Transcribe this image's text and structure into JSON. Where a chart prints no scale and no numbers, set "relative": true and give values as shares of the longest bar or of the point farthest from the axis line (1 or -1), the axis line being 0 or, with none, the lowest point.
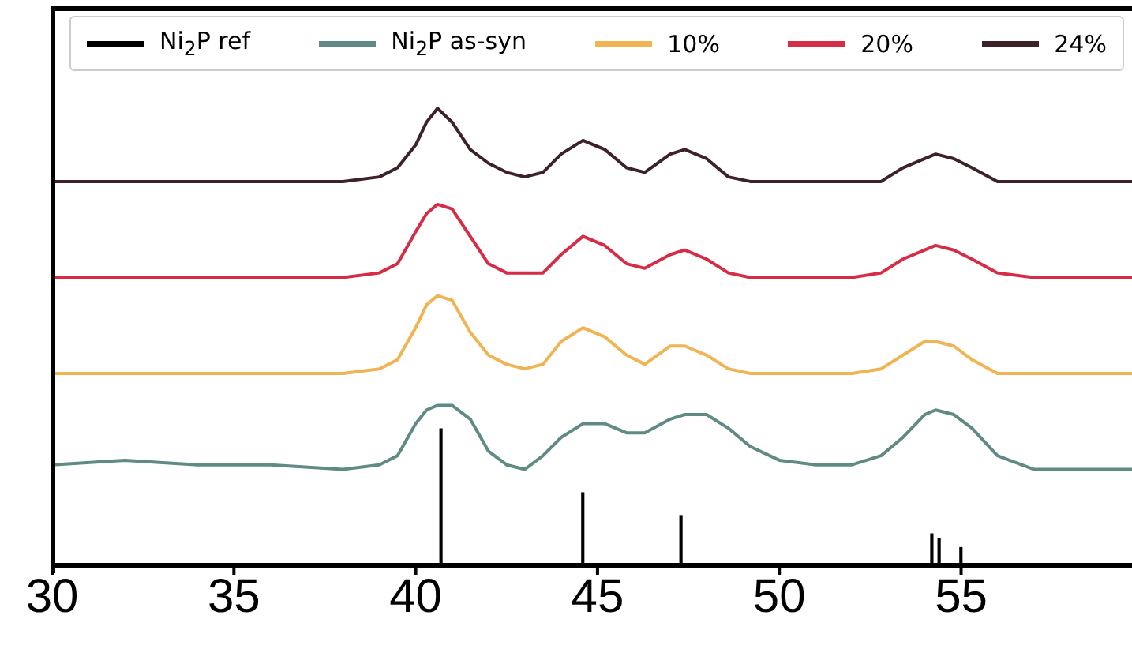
{
  "chart_data": {
    "type": "line",
    "relative": true,
    "legend": "top",
    "grid": false,
    "marker": "none",
    "line_style": "solid",
    "x": [
      30,
      32,
      34,
      36,
      38,
      39,
      39.5,
      40,
      40.3,
      40.6,
      41,
      41.5,
      42,
      42.5,
      43,
      43.5,
      44,
      44.6,
      45.2,
      45.8,
      46.3,
      47,
      47.4,
      48,
      48.6,
      49.2,
      50,
      51,
      52,
      52.8,
      53.4,
      54,
      54.3,
      54.8,
      55.3,
      56,
      57,
      58,
      59.7
    ],
    "xlim": [
      30,
      59.7
    ],
    "xticks": [
      30,
      35,
      40,
      45,
      50,
      55
    ],
    "series": [
      {
        "name": "Ni$_{2}$P ref",
        "type": "bar",
        "color": "#000000",
        "x": [
          40.7,
          44.6,
          47.3,
          54.2,
          54.4,
          55.0
        ],
        "values": [
          0.3,
          0.16,
          0.11,
          0.07,
          0.06,
          0.04
        ]
      },
      {
        "name": "Ni$_{2}$P as-syn",
        "color": "#5f8a85",
        "values": [
          0.22,
          0.23,
          0.22,
          0.22,
          0.21,
          0.22,
          0.24,
          0.31,
          0.34,
          0.35,
          0.35,
          0.32,
          0.25,
          0.22,
          0.21,
          0.24,
          0.28,
          0.31,
          0.31,
          0.29,
          0.29,
          0.32,
          0.33,
          0.33,
          0.3,
          0.26,
          0.23,
          0.22,
          0.22,
          0.24,
          0.28,
          0.33,
          0.34,
          0.33,
          0.3,
          0.24,
          0.21,
          0.21,
          0.21
        ]
      },
      {
        "name": "10%",
        "color": "#f0b452",
        "values": [
          0.42,
          0.42,
          0.42,
          0.42,
          0.42,
          0.43,
          0.45,
          0.52,
          0.57,
          0.59,
          0.58,
          0.51,
          0.46,
          0.44,
          0.43,
          0.44,
          0.49,
          0.52,
          0.5,
          0.46,
          0.44,
          0.48,
          0.48,
          0.46,
          0.43,
          0.42,
          0.42,
          0.42,
          0.42,
          0.43,
          0.46,
          0.49,
          0.49,
          0.48,
          0.45,
          0.42,
          0.42,
          0.42,
          0.42
        ]
      },
      {
        "name": "20%",
        "color": "#d62d46",
        "values": [
          0.63,
          0.63,
          0.63,
          0.63,
          0.63,
          0.64,
          0.66,
          0.73,
          0.77,
          0.79,
          0.78,
          0.72,
          0.66,
          0.64,
          0.64,
          0.64,
          0.68,
          0.72,
          0.7,
          0.66,
          0.65,
          0.68,
          0.69,
          0.67,
          0.64,
          0.63,
          0.63,
          0.63,
          0.63,
          0.64,
          0.67,
          0.69,
          0.7,
          0.69,
          0.67,
          0.64,
          0.63,
          0.63,
          0.63
        ]
      },
      {
        "name": "24%",
        "color": "#3d2327",
        "values": [
          0.84,
          0.84,
          0.84,
          0.84,
          0.84,
          0.85,
          0.87,
          0.92,
          0.97,
          1,
          0.97,
          0.91,
          0.88,
          0.86,
          0.85,
          0.86,
          0.9,
          0.93,
          0.91,
          0.87,
          0.86,
          0.9,
          0.91,
          0.89,
          0.85,
          0.84,
          0.84,
          0.84,
          0.84,
          0.84,
          0.87,
          0.89,
          0.9,
          0.89,
          0.87,
          0.84,
          0.84,
          0.84,
          0.84
        ]
      }
    ]
  }
}
